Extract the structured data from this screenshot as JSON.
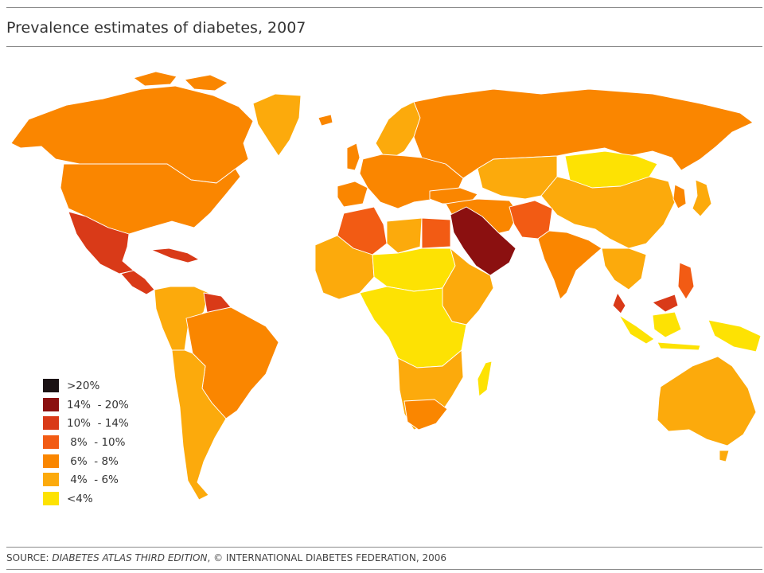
{
  "title": "Prevalence estimates of diabetes, 2007",
  "legend": [
    {
      "label": ">20%",
      "color": "#1b1214"
    },
    {
      "label": "14%  - 20%",
      "color": "#8b1010"
    },
    {
      "label": "10%  - 14%",
      "color": "#d93a18"
    },
    {
      "label": " 8%  - 10%",
      "color": "#f25b14"
    },
    {
      "label": " 6%  - 8%",
      "color": "#fa8600"
    },
    {
      "label": " 4%  - 6%",
      "color": "#fcaa0c"
    },
    {
      "label": "<4%",
      "color": "#fde203"
    }
  ],
  "source": {
    "prefix": "SOURCE: ",
    "publication": "DIABETES ATLAS THIRD EDITION",
    "suffix": ", © INTERNATIONAL DIABETES FEDERATION, 2006"
  },
  "map_regions": [
    {
      "name": "greenland",
      "band": " 4%  - 6%"
    },
    {
      "name": "canada",
      "band": " 6%  - 8%"
    },
    {
      "name": "united-states",
      "band": " 6%  - 8%"
    },
    {
      "name": "mexico",
      "band": "10%  - 14%"
    },
    {
      "name": "central-america",
      "band": "10%  - 14%"
    },
    {
      "name": "caribbean",
      "band": "10%  - 14%"
    },
    {
      "name": "guianas",
      "band": "10%  - 14%"
    },
    {
      "name": "northern-south-america",
      "band": " 4%  - 6%"
    },
    {
      "name": "brazil",
      "band": " 6%  - 8%"
    },
    {
      "name": "southern-cone",
      "band": " 4%  - 6%"
    },
    {
      "name": "russia",
      "band": " 6%  - 8%"
    },
    {
      "name": "scandinavia",
      "band": " 4%  - 6%"
    },
    {
      "name": "europe",
      "band": " 6%  - 8%"
    },
    {
      "name": "iberia",
      "band": " 6%  - 8%"
    },
    {
      "name": "central-asia",
      "band": " 4%  - 6%"
    },
    {
      "name": "mongolia",
      "band": "<4%"
    },
    {
      "name": "china",
      "band": " 4%  - 6%"
    },
    {
      "name": "japan",
      "band": " 4%  - 6%"
    },
    {
      "name": "korea",
      "band": " 6%  - 8%"
    },
    {
      "name": "arabian-peninsula",
      "band": "14%  - 20%"
    },
    {
      "name": "middle-east",
      "band": " 6%  - 8%"
    },
    {
      "name": "pakistan",
      "band": " 8%  - 10%"
    },
    {
      "name": "india",
      "band": " 6%  - 8%"
    },
    {
      "name": "southeast-asia",
      "band": " 4%  - 6%"
    },
    {
      "name": "indonesia",
      "band": "<4%"
    },
    {
      "name": "malaysia",
      "band": "10%  - 14%"
    },
    {
      "name": "philippines",
      "band": " 8%  - 10%"
    },
    {
      "name": "australia",
      "band": " 4%  - 6%"
    },
    {
      "name": "algeria",
      "band": " 8%  - 10%"
    },
    {
      "name": "egypt",
      "band": " 8%  - 10%"
    },
    {
      "name": "west-africa",
      "band": " 4%  - 6%"
    },
    {
      "name": "sahel",
      "band": "<4%"
    },
    {
      "name": "east-africa",
      "band": " 4%  - 6%"
    },
    {
      "name": "central-africa",
      "band": "<4%"
    },
    {
      "name": "southern-africa",
      "band": " 4%  - 6%"
    },
    {
      "name": "south-africa",
      "band": " 6%  - 8%"
    },
    {
      "name": "madagascar",
      "band": "<4%"
    }
  ]
}
